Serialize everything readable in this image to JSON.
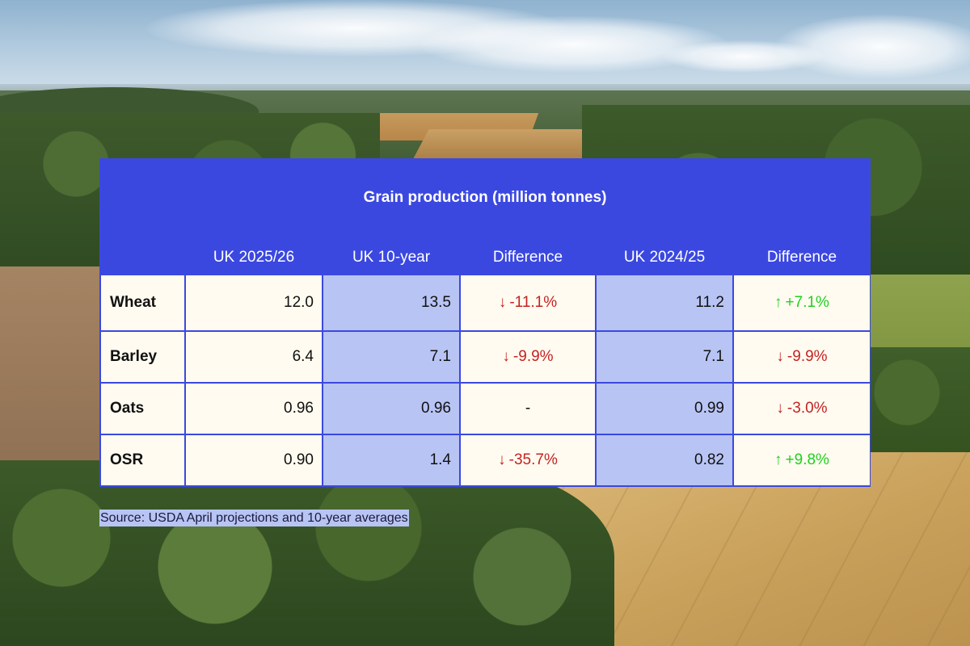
{
  "chart_data": {
    "type": "table",
    "title": "Grain production (million tonnes)",
    "columns": [
      "",
      "UK 2025/26",
      "UK 10-year",
      "Difference",
      "UK 2024/25",
      "Difference"
    ],
    "rows": [
      {
        "crop": "Wheat",
        "uk_2025_26": "12.0",
        "uk_10_year": "13.5",
        "diff_10y": {
          "text": "-11.1%",
          "arrow": "↓",
          "dir": "down"
        },
        "uk_2024_25": "11.2",
        "diff_prev": {
          "text": "+7.1%",
          "arrow": "↑",
          "dir": "up"
        }
      },
      {
        "crop": "Barley",
        "uk_2025_26": "6.4",
        "uk_10_year": "7.1",
        "diff_10y": {
          "text": "-9.9%",
          "arrow": "↓",
          "dir": "down"
        },
        "uk_2024_25": "7.1",
        "diff_prev": {
          "text": "-9.9%",
          "arrow": "↓",
          "dir": "down"
        }
      },
      {
        "crop": "Oats",
        "uk_2025_26": "0.96",
        "uk_10_year": "0.96",
        "diff_10y": {
          "text": "-",
          "arrow": "",
          "dir": "neutral"
        },
        "uk_2024_25": "0.99",
        "diff_prev": {
          "text": "-3.0%",
          "arrow": "↓",
          "dir": "down"
        }
      },
      {
        "crop": "OSR",
        "uk_2025_26": "0.90",
        "uk_10_year": "1.4",
        "diff_10y": {
          "text": "-35.7%",
          "arrow": "↓",
          "dir": "down"
        },
        "uk_2024_25": "0.82",
        "diff_prev": {
          "text": "+9.8%",
          "arrow": "↑",
          "dir": "up"
        }
      }
    ],
    "source": "Source: USDA April projections and 10-year averages"
  },
  "colors": {
    "header_bg": "#3b48e0",
    "cell_bg": "#fffbf0",
    "shaded_cell_bg": "#b8c4f4",
    "down": "#c42323",
    "up": "#1fd11f"
  }
}
